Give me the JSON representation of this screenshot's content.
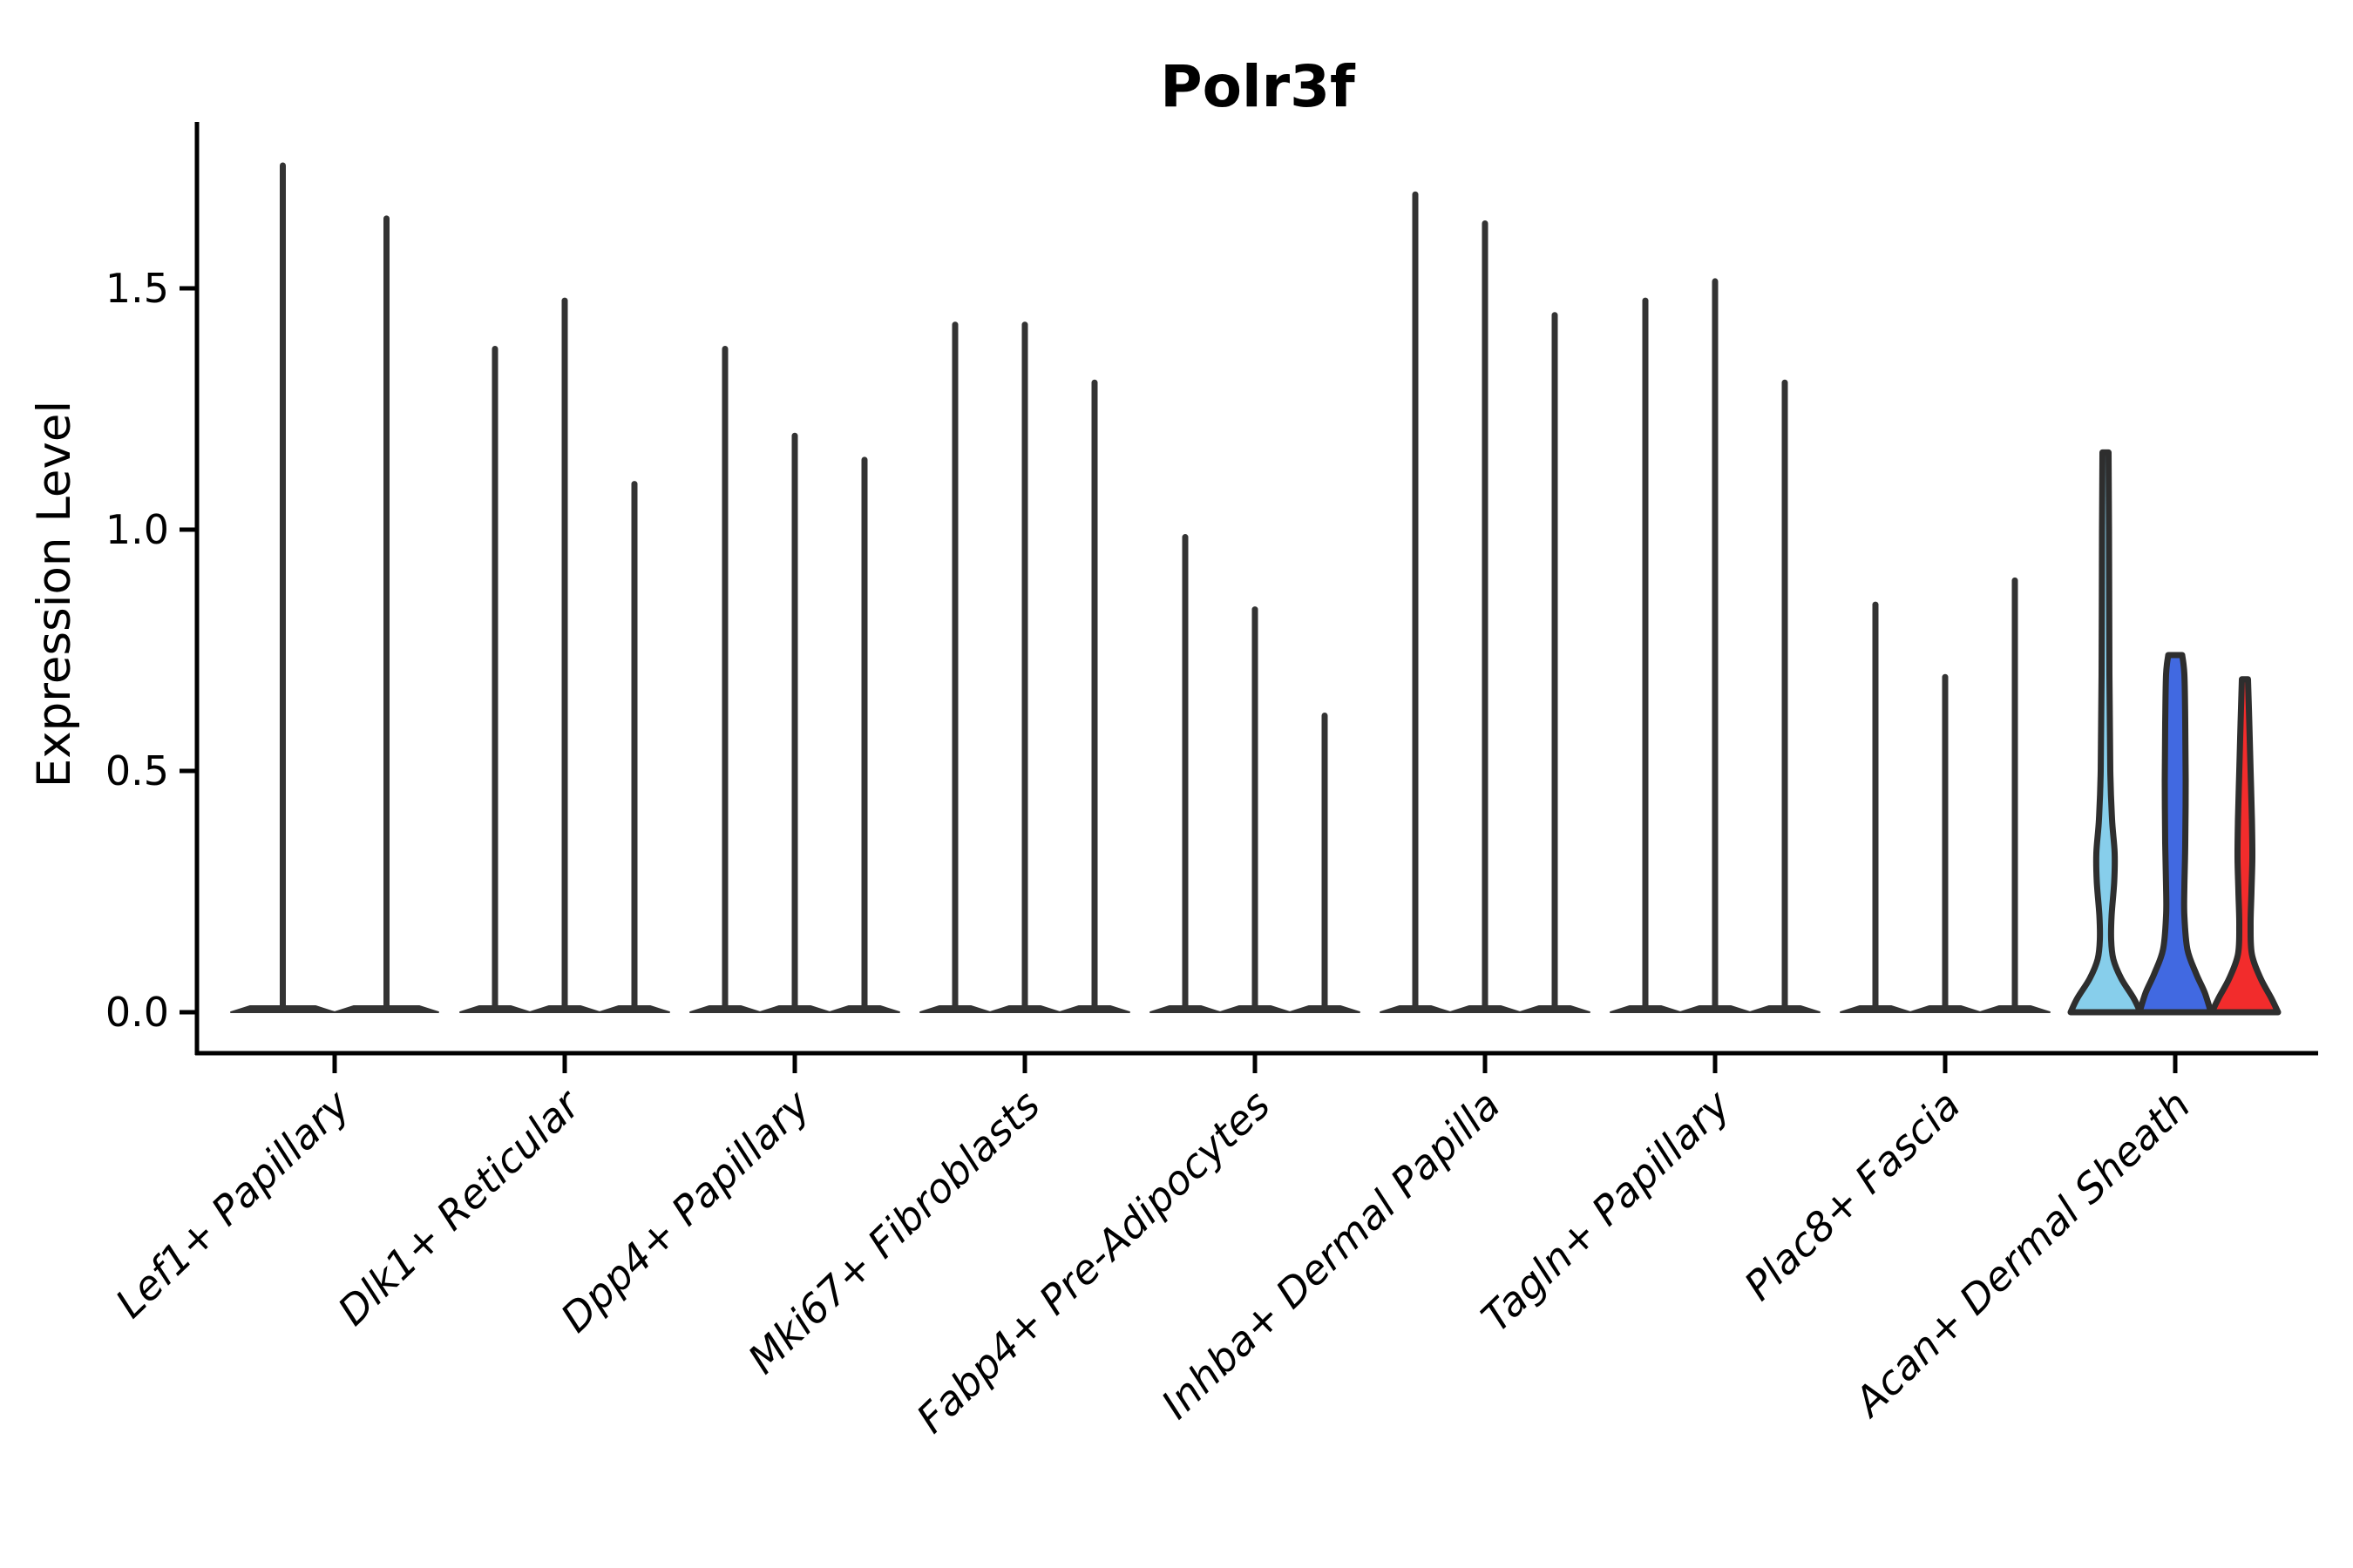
{
  "chart_data": {
    "type": "violin",
    "title": "Polr3f",
    "xlabel": "",
    "ylabel": "Expression Level",
    "ylim": [
      0,
      1.84
    ],
    "yticks": [
      0,
      0.5,
      1.0,
      1.5
    ],
    "ytick_labels": [
      "0.0",
      "0.5",
      "1.0",
      "1.5"
    ],
    "xtick_rotation_deg": 44,
    "grid": false,
    "legend_position": "none",
    "categories": [
      "Lef1+ Papillary",
      "Dlk1+ Reticular",
      "Dpp4+ Papillary",
      "Mki67+ Fibroblasts",
      "Fabp4+ Pre-Adipocytes",
      "Inhba+ Dermal Papilla",
      "Tagln+ Papillary",
      "Plac8+ Fascia",
      "Acan+ Dermal Sheath"
    ],
    "colors": {
      "violin_dark": "#333333",
      "axis": "#000000",
      "light_blue": "#87CEEB",
      "blue": "#4169E1",
      "red": "#F22C2C"
    },
    "groups": [
      {
        "category": "Lef1+ Papillary",
        "violins": [
          {
            "style": "collapsed-spike",
            "max_expression": 1.76,
            "fill": "#333333"
          },
          {
            "style": "collapsed-spike",
            "max_expression": 1.65,
            "fill": "#333333"
          }
        ]
      },
      {
        "category": "Dlk1+ Reticular",
        "violins": [
          {
            "style": "collapsed-spike",
            "max_expression": 1.38,
            "fill": "#333333"
          },
          {
            "style": "collapsed-spike",
            "max_expression": 1.48,
            "fill": "#333333"
          },
          {
            "style": "collapsed-spike",
            "max_expression": 1.1,
            "fill": "#333333"
          }
        ]
      },
      {
        "category": "Dpp4+ Papillary",
        "violins": [
          {
            "style": "collapsed-spike",
            "max_expression": 1.38,
            "fill": "#333333"
          },
          {
            "style": "collapsed-spike",
            "max_expression": 1.2,
            "fill": "#333333"
          },
          {
            "style": "collapsed-spike",
            "max_expression": 1.15,
            "fill": "#333333"
          }
        ]
      },
      {
        "category": "Mki67+ Fibroblasts",
        "violins": [
          {
            "style": "collapsed-spike",
            "max_expression": 1.43,
            "fill": "#333333"
          },
          {
            "style": "collapsed-spike",
            "max_expression": 1.43,
            "fill": "#333333"
          },
          {
            "style": "collapsed-spike",
            "max_expression": 1.31,
            "fill": "#333333"
          }
        ]
      },
      {
        "category": "Fabp4+ Pre-Adipocytes",
        "violins": [
          {
            "style": "collapsed-spike",
            "max_expression": 0.99,
            "fill": "#333333"
          },
          {
            "style": "collapsed-spike",
            "max_expression": 0.84,
            "fill": "#333333"
          },
          {
            "style": "collapsed-spike",
            "max_expression": 0.62,
            "fill": "#333333"
          }
        ]
      },
      {
        "category": "Inhba+ Dermal Papilla",
        "violins": [
          {
            "style": "collapsed-spike",
            "max_expression": 1.7,
            "fill": "#333333"
          },
          {
            "style": "collapsed-spike",
            "max_expression": 1.64,
            "fill": "#333333"
          },
          {
            "style": "collapsed-spike",
            "max_expression": 1.45,
            "fill": "#333333"
          }
        ]
      },
      {
        "category": "Tagln+ Papillary",
        "violins": [
          {
            "style": "collapsed-spike",
            "max_expression": 1.48,
            "fill": "#333333"
          },
          {
            "style": "collapsed-spike",
            "max_expression": 1.52,
            "fill": "#333333"
          },
          {
            "style": "collapsed-spike",
            "max_expression": 1.31,
            "fill": "#333333"
          }
        ]
      },
      {
        "category": "Plac8+ Fascia",
        "violins": [
          {
            "style": "collapsed-spike",
            "max_expression": 0.85,
            "fill": "#333333"
          },
          {
            "style": "collapsed-spike",
            "max_expression": 0.7,
            "fill": "#333333"
          },
          {
            "style": "collapsed-spike",
            "max_expression": 0.9,
            "fill": "#333333"
          }
        ]
      },
      {
        "category": "Acan+ Dermal Sheath",
        "violins": [
          {
            "style": "density",
            "max_expression": 1.16,
            "fill": "#87CEEB",
            "profile": [
              [
                1.16,
                3.5
              ],
              [
                1.0,
                4.0
              ],
              [
                0.7,
                4.5
              ],
              [
                0.5,
                5.5
              ],
              [
                0.4,
                7.5
              ],
              [
                0.33,
                10.5
              ],
              [
                0.27,
                10.0
              ],
              [
                0.2,
                7.0
              ],
              [
                0.15,
                6.5
              ],
              [
                0.11,
                9.0
              ],
              [
                0.07,
                18.0
              ],
              [
                0.03,
                32.0
              ],
              [
                0.0,
                40.0
              ]
            ]
          },
          {
            "style": "density",
            "max_expression": 0.74,
            "fill": "#4169E1",
            "profile": [
              [
                0.74,
                8.0
              ],
              [
                0.7,
                10.5
              ],
              [
                0.6,
                11.5
              ],
              [
                0.48,
                12.0
              ],
              [
                0.35,
                11.5
              ],
              [
                0.26,
                10.5
              ],
              [
                0.2,
                10.5
              ],
              [
                0.13,
                14.0
              ],
              [
                0.08,
                24.0
              ],
              [
                0.04,
                34.0
              ],
              [
                0.0,
                41.0
              ]
            ]
          },
          {
            "style": "density",
            "max_expression": 0.69,
            "fill": "#F22C2C",
            "profile": [
              [
                0.69,
                3.5
              ],
              [
                0.6,
                5.0
              ],
              [
                0.5,
                6.5
              ],
              [
                0.4,
                8.0
              ],
              [
                0.32,
                8.5
              ],
              [
                0.25,
                7.5
              ],
              [
                0.18,
                6.5
              ],
              [
                0.12,
                8.0
              ],
              [
                0.07,
                18.0
              ],
              [
                0.03,
                30.0
              ],
              [
                0.0,
                38.0
              ]
            ]
          }
        ]
      }
    ]
  }
}
